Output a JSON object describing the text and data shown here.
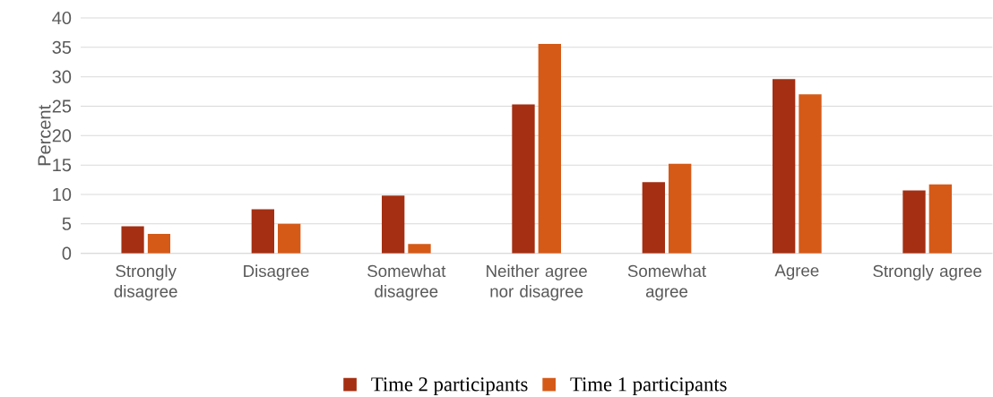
{
  "chart_data": {
    "type": "bar",
    "ylabel": "Percent",
    "categories": [
      "Strongly disagree",
      "Disagree",
      "Somewhat disagree",
      "Neither agree nor disagree",
      "Somewhat agree",
      "Agree",
      "Strongly agree"
    ],
    "series": [
      {
        "name": "Time 2 participants",
        "color": "#a52f12",
        "values": [
          4.6,
          7.5,
          9.8,
          25.3,
          12.1,
          29.6,
          10.7
        ]
      },
      {
        "name": "Time 1 participants",
        "color": "#d55a18",
        "values": [
          3.3,
          5.0,
          1.6,
          35.6,
          15.2,
          27.0,
          11.7
        ]
      }
    ],
    "ylim": [
      0,
      40
    ],
    "yticks": [
      0,
      5,
      10,
      15,
      20,
      25,
      30,
      35,
      40
    ],
    "grid": "y",
    "legend": "bottom"
  }
}
